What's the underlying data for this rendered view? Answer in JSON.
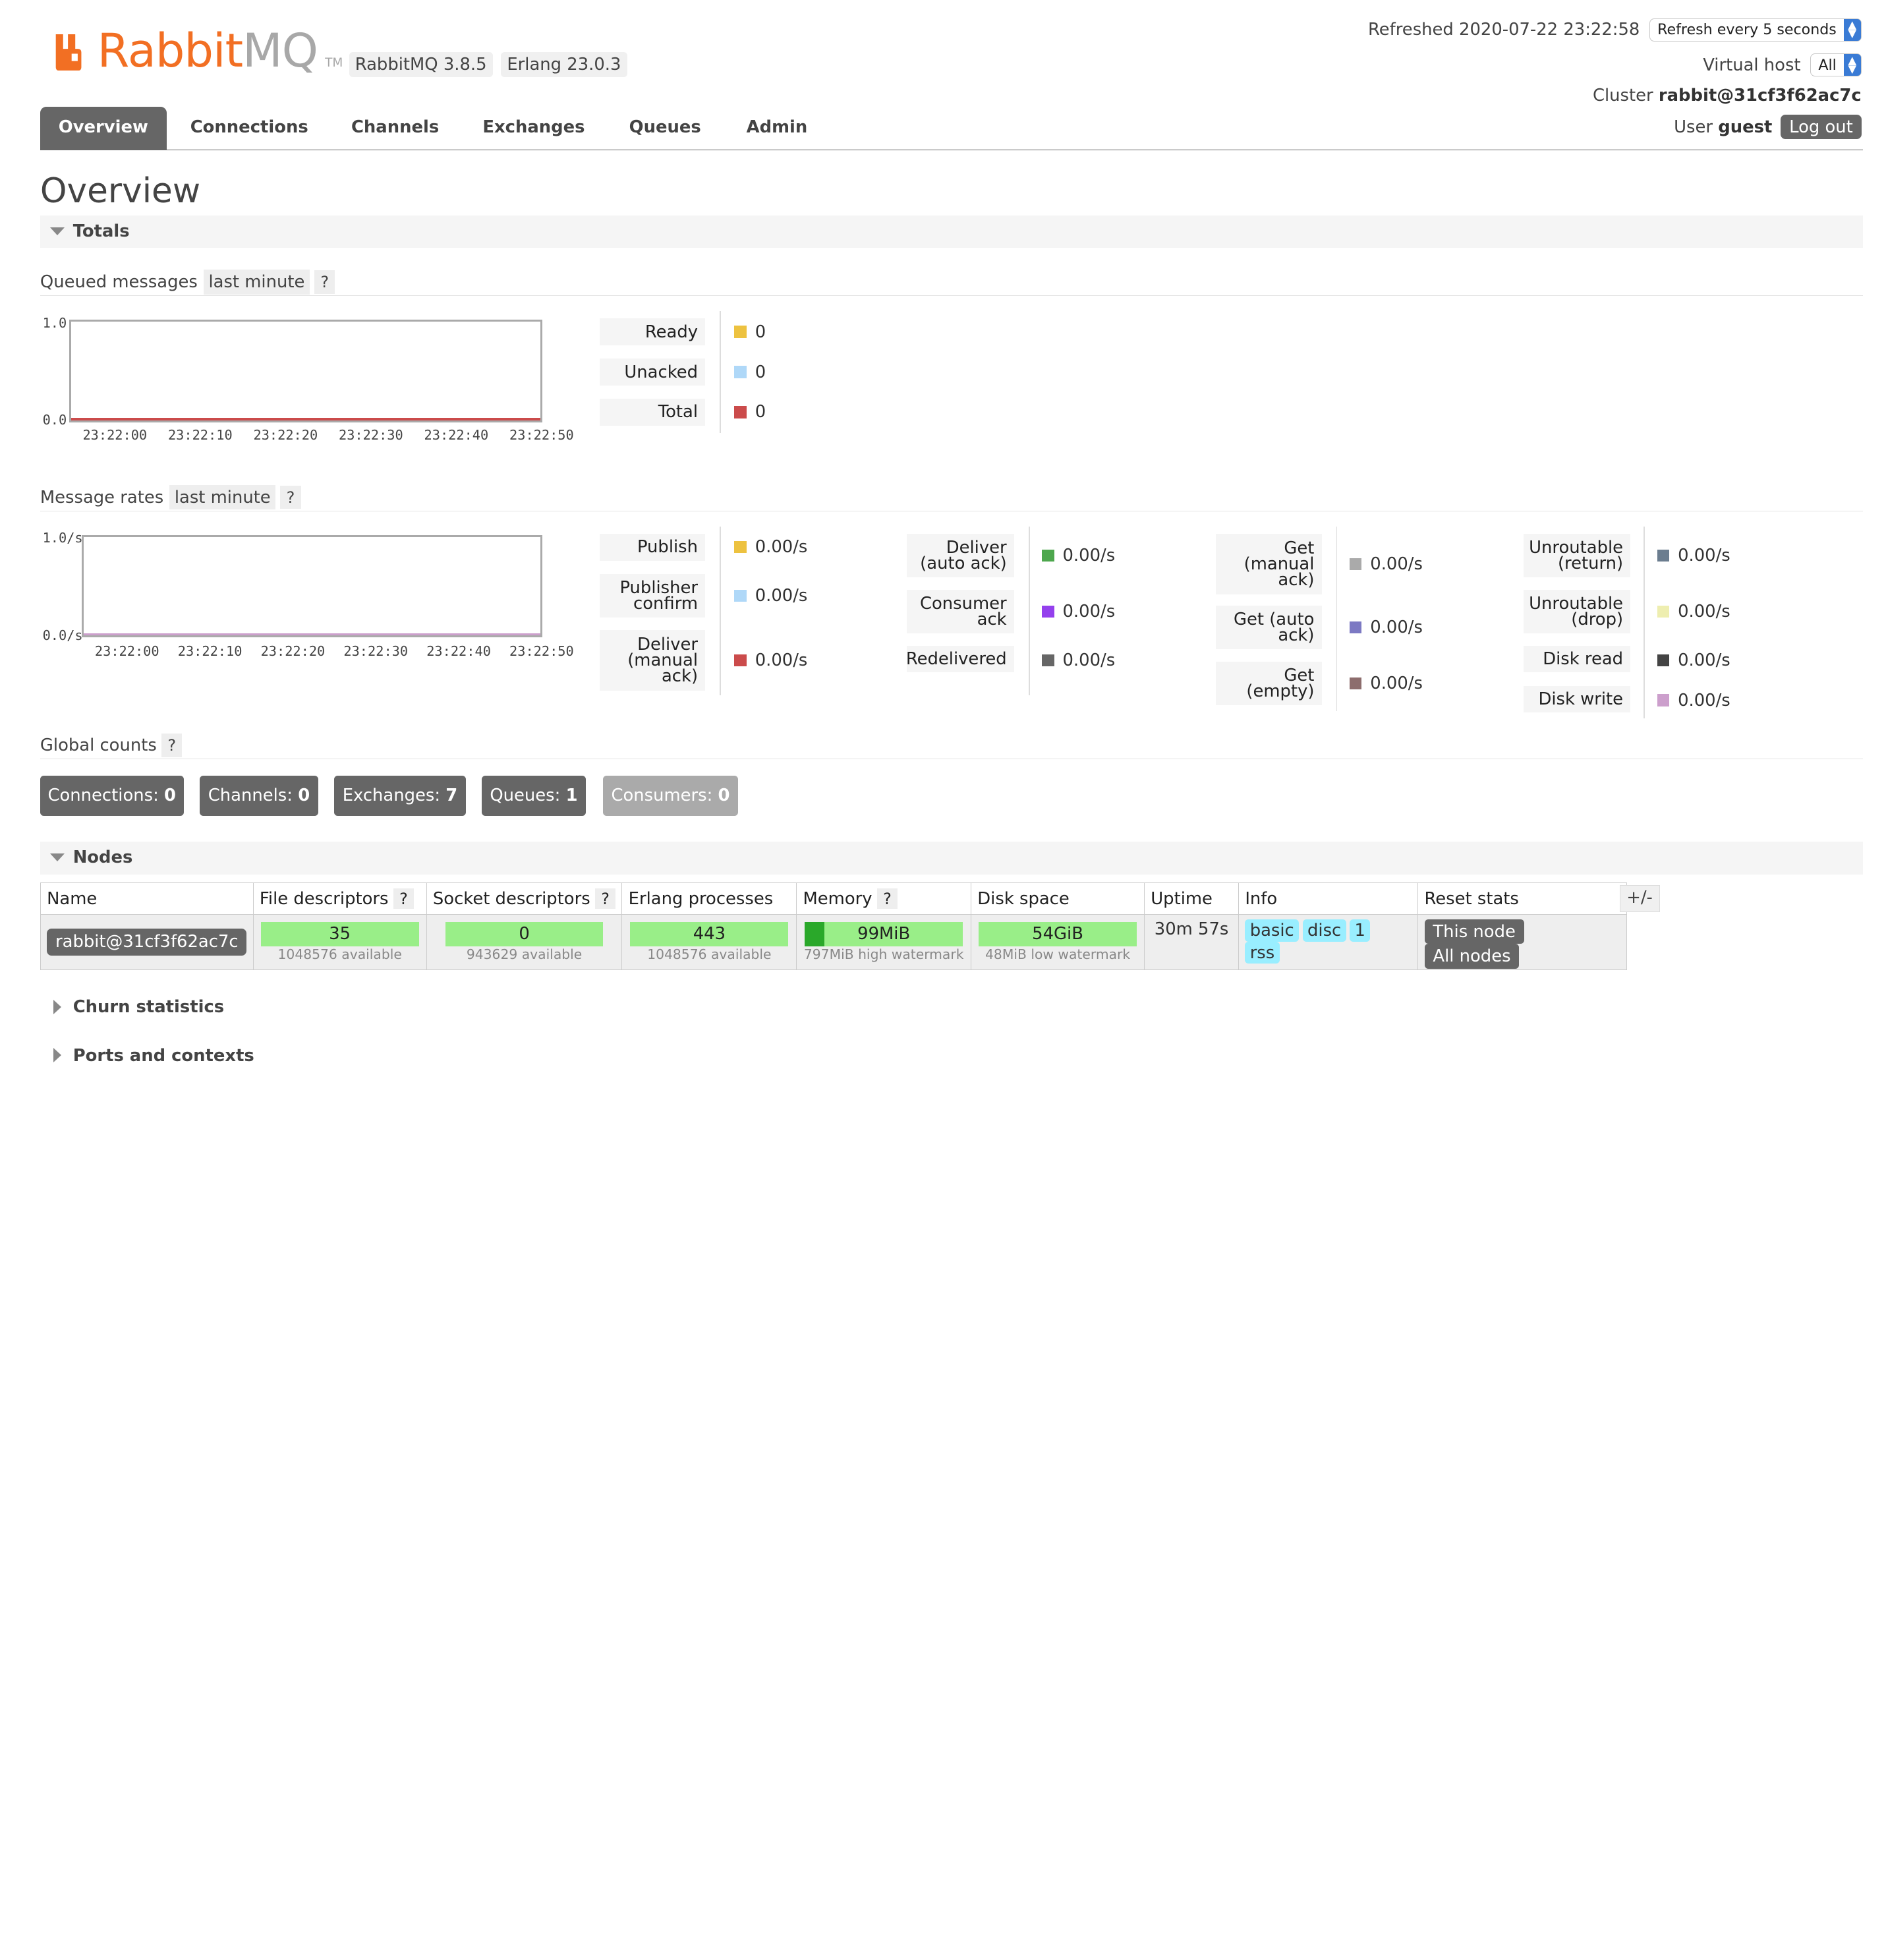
{
  "header": {
    "logo_rabbit": "Rabbit",
    "logo_mq": "MQ",
    "logo_tm": "TM",
    "rabbitmq_version": "RabbitMQ 3.8.5",
    "erlang_version": "Erlang 23.0.3",
    "refreshed_label": "Refreshed 2020-07-22 23:22:58",
    "refresh_select": "Refresh every 5 seconds",
    "virtual_host_label": "Virtual host",
    "virtual_host_select": "All",
    "cluster_label": "Cluster",
    "cluster_name": "rabbit@31cf3f62ac7c",
    "user_label": "User",
    "user_name": "guest",
    "logout_label": "Log out"
  },
  "tabs": [
    {
      "label": "Overview",
      "active": true
    },
    {
      "label": "Connections"
    },
    {
      "label": "Channels"
    },
    {
      "label": "Exchanges"
    },
    {
      "label": "Queues"
    },
    {
      "label": "Admin"
    }
  ],
  "page_title": "Overview",
  "totals": {
    "section_label": "Totals",
    "queued": {
      "title": "Queued messages",
      "range": "last minute",
      "help": "?",
      "y_top": "1.0",
      "y_bottom": "0.0",
      "x_ticks": [
        "23:22:00",
        "23:22:10",
        "23:22:20",
        "23:22:30",
        "23:22:40",
        "23:22:50"
      ],
      "legend": [
        {
          "label": "Ready",
          "value": "0",
          "color": "#edc240"
        },
        {
          "label": "Unacked",
          "value": "0",
          "color": "#afd8f8"
        },
        {
          "label": "Total",
          "value": "0",
          "color": "#cb4b4b"
        }
      ]
    },
    "rates": {
      "title": "Message rates",
      "range": "last minute",
      "help": "?",
      "y_top": "1.0/s",
      "y_bottom": "0.0/s",
      "x_ticks": [
        "23:22:00",
        "23:22:10",
        "23:22:20",
        "23:22:30",
        "23:22:40",
        "23:22:50"
      ],
      "col1": [
        {
          "label": "Publish",
          "value": "0.00/s",
          "color": "#edc240"
        },
        {
          "label": "Publisher confirm",
          "value": "0.00/s",
          "color": "#afd8f8"
        },
        {
          "label": "Deliver (manual ack)",
          "value": "0.00/s",
          "color": "#cb4b4b"
        }
      ],
      "col2": [
        {
          "label": "Deliver (auto ack)",
          "value": "0.00/s",
          "color": "#4da74d"
        },
        {
          "label": "Consumer ack",
          "value": "0.00/s",
          "color": "#9440ed"
        },
        {
          "label": "Redelivered",
          "value": "0.00/s",
          "color": "#666666"
        }
      ],
      "col3": [
        {
          "label": "Get (manual ack)",
          "value": "0.00/s",
          "color": "#aaaaaa"
        },
        {
          "label": "Get (auto ack)",
          "value": "0.00/s",
          "color": "#7c79c3"
        },
        {
          "label": "Get (empty)",
          "value": "0.00/s",
          "color": "#8d6d6d"
        }
      ],
      "col4": [
        {
          "label": "Unroutable (return)",
          "value": "0.00/s",
          "color": "#6b7d8f"
        },
        {
          "label": "Unroutable (drop)",
          "value": "0.00/s",
          "color": "#eeeeb0"
        },
        {
          "label": "Disk read",
          "value": "0.00/s",
          "color": "#444444"
        },
        {
          "label": "Disk write",
          "value": "0.00/s",
          "color": "#cc9fcc"
        }
      ]
    },
    "global_counts": {
      "title": "Global counts",
      "help": "?",
      "items": [
        {
          "label": "Connections:",
          "value": "0"
        },
        {
          "label": "Channels:",
          "value": "0"
        },
        {
          "label": "Exchanges:",
          "value": "7"
        },
        {
          "label": "Queues:",
          "value": "1"
        },
        {
          "label": "Consumers:",
          "value": "0"
        }
      ]
    }
  },
  "nodes": {
    "section_label": "Nodes",
    "headers": {
      "name": "Name",
      "file_desc": "File descriptors",
      "socket_desc": "Socket descriptors",
      "erlang_proc": "Erlang processes",
      "memory": "Memory",
      "disk": "Disk space",
      "uptime": "Uptime",
      "info": "Info",
      "reset": "Reset stats",
      "help": "?"
    },
    "row": {
      "name": "rabbit@31cf3f62ac7c",
      "file_desc": "35",
      "file_desc_sub": "1048576 available",
      "socket_desc": "0",
      "socket_desc_sub": "943629 available",
      "erlang_proc": "443",
      "erlang_proc_sub": "1048576 available",
      "memory": "99MiB",
      "memory_sub": "797MiB high watermark",
      "memory_fill_fraction": 0.124,
      "disk": "54GiB",
      "disk_sub": "48MiB low watermark",
      "uptime": "30m 57s",
      "info": [
        "basic",
        "disc",
        "1",
        "rss"
      ],
      "reset_this": "This node",
      "reset_all": "All nodes"
    },
    "toggle_columns": "+/-"
  },
  "collapsed_sections": [
    "Churn statistics",
    "Ports and contexts"
  ]
}
